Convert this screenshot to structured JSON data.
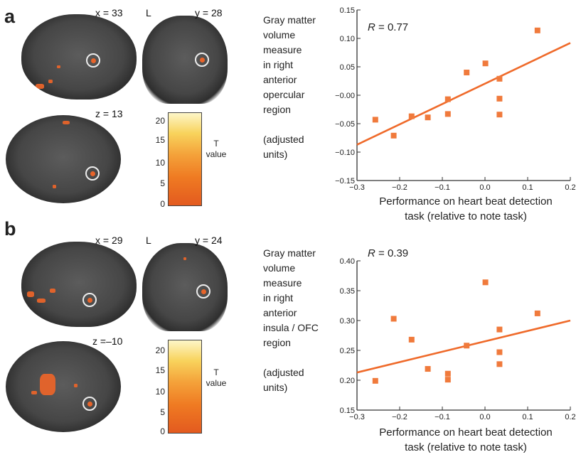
{
  "panels": [
    {
      "letter": "a",
      "slices": {
        "sagittal": "x = 33",
        "coronal": "y = 28",
        "axial": "z = 13",
        "side": "L"
      },
      "colorbar": {
        "ticks": [
          "20",
          "15",
          "10",
          "5",
          "0"
        ],
        "label_line1": "T",
        "label_line2": "value"
      },
      "ylabel_lines": [
        "Gray matter",
        "volume",
        "measure",
        "in right",
        "anterior",
        "opercular",
        "region",
        "",
        "(adjusted",
        "units)"
      ],
      "r_prefix": "R",
      "r_value": "= 0.77",
      "xlabel_line1": "Performance on heart beat detection",
      "xlabel_line2": "task (relative to note task)"
    },
    {
      "letter": "b",
      "slices": {
        "sagittal": "x = 29",
        "coronal": "y = 24",
        "axial": "z =–10",
        "side": "L"
      },
      "colorbar": {
        "ticks": [
          "20",
          "15",
          "10",
          "5",
          "0"
        ],
        "label_line1": "T",
        "label_line2": "value"
      },
      "ylabel_lines": [
        "Gray matter",
        "volume",
        "measure",
        "in right",
        "anterior",
        "insula / OFC",
        "region",
        "",
        "(adjusted",
        "units)"
      ],
      "r_prefix": "R",
      "r_value": "= 0.39",
      "xlabel_line1": "Performance on heart beat detection",
      "xlabel_line2": "task (relative to note task)"
    }
  ],
  "colors": {
    "marker": "#f07a3c",
    "line": "#ef6a2a",
    "axis": "#333333"
  },
  "chart_data": [
    {
      "type": "scatter",
      "xlim": [
        -0.3,
        0.2
      ],
      "ylim": [
        -0.15,
        0.15
      ],
      "xticks": [
        -0.3,
        -0.2,
        -0.1,
        0.0,
        0.1,
        0.2
      ],
      "xtick_labels": [
        "−0.3",
        "−0.2",
        "−0.1",
        "0.0",
        "0.1",
        "0.2"
      ],
      "yticks": [
        -0.15,
        -0.1,
        -0.05,
        0.0,
        0.05,
        0.1,
        0.15
      ],
      "ytick_labels": [
        "−0.15",
        "−0.10",
        "−0.05",
        "−0.00",
        "0.05",
        "0.10",
        "0.15"
      ],
      "points": [
        {
          "x": -0.257,
          "y": -0.043
        },
        {
          "x": -0.214,
          "y": -0.071
        },
        {
          "x": -0.172,
          "y": -0.037
        },
        {
          "x": -0.134,
          "y": -0.039
        },
        {
          "x": -0.087,
          "y": -0.007
        },
        {
          "x": -0.087,
          "y": -0.033
        },
        {
          "x": -0.043,
          "y": 0.04
        },
        {
          "x": 0.001,
          "y": 0.056
        },
        {
          "x": 0.034,
          "y": 0.029
        },
        {
          "x": 0.034,
          "y": -0.006
        },
        {
          "x": 0.034,
          "y": -0.034
        },
        {
          "x": 0.123,
          "y": 0.114
        }
      ],
      "fit_line": {
        "x": [
          -0.3,
          0.2
        ],
        "y": [
          -0.087,
          0.092
        ]
      },
      "grid": false
    },
    {
      "type": "scatter",
      "xlim": [
        -0.3,
        0.2
      ],
      "ylim": [
        0.15,
        0.4
      ],
      "xticks": [
        -0.3,
        -0.2,
        -0.1,
        0.0,
        0.1,
        0.2
      ],
      "xtick_labels": [
        "−0.3",
        "−0.2",
        "−0.1",
        "0.0",
        "0.1",
        "0.2"
      ],
      "yticks": [
        0.15,
        0.2,
        0.25,
        0.3,
        0.35,
        0.4
      ],
      "ytick_labels": [
        "0.15",
        "0.20",
        "0.25",
        "0.30",
        "0.35",
        "0.40"
      ],
      "points": [
        {
          "x": -0.257,
          "y": 0.199
        },
        {
          "x": -0.214,
          "y": 0.303
        },
        {
          "x": -0.172,
          "y": 0.268
        },
        {
          "x": -0.134,
          "y": 0.219
        },
        {
          "x": -0.087,
          "y": 0.211
        },
        {
          "x": -0.087,
          "y": 0.201
        },
        {
          "x": -0.043,
          "y": 0.258
        },
        {
          "x": 0.001,
          "y": 0.364
        },
        {
          "x": 0.034,
          "y": 0.285
        },
        {
          "x": 0.034,
          "y": 0.247
        },
        {
          "x": 0.034,
          "y": 0.227
        },
        {
          "x": 0.123,
          "y": 0.312
        }
      ],
      "fit_line": {
        "x": [
          -0.3,
          0.2
        ],
        "y": [
          0.213,
          0.3
        ]
      },
      "grid": false
    }
  ]
}
